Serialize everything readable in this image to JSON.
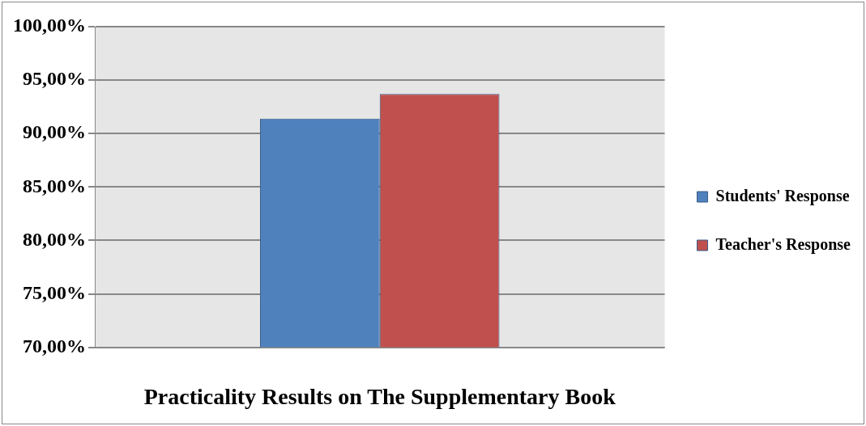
{
  "chart_data": {
    "type": "bar",
    "xlabel": "Practicality Results on The Supplementary Book",
    "categories": [
      null
    ],
    "series": [
      {
        "name": "Students' Response",
        "color": "#4f81bd",
        "values": [
          91.4
        ]
      },
      {
        "name": "Teacher's Response",
        "color": "#c0504d",
        "values": [
          93.7
        ]
      }
    ],
    "ylim": [
      70,
      100
    ],
    "yticks": [
      {
        "value": 70,
        "label": "70,00%"
      },
      {
        "value": 75,
        "label": "75,00%"
      },
      {
        "value": 80,
        "label": "80,00%"
      },
      {
        "value": 85,
        "label": "85,00%"
      },
      {
        "value": 90,
        "label": "90,00%"
      },
      {
        "value": 95,
        "label": "95,00%"
      },
      {
        "value": 100,
        "label": "100,00%"
      }
    ],
    "grid": "y",
    "legend": "right"
  }
}
